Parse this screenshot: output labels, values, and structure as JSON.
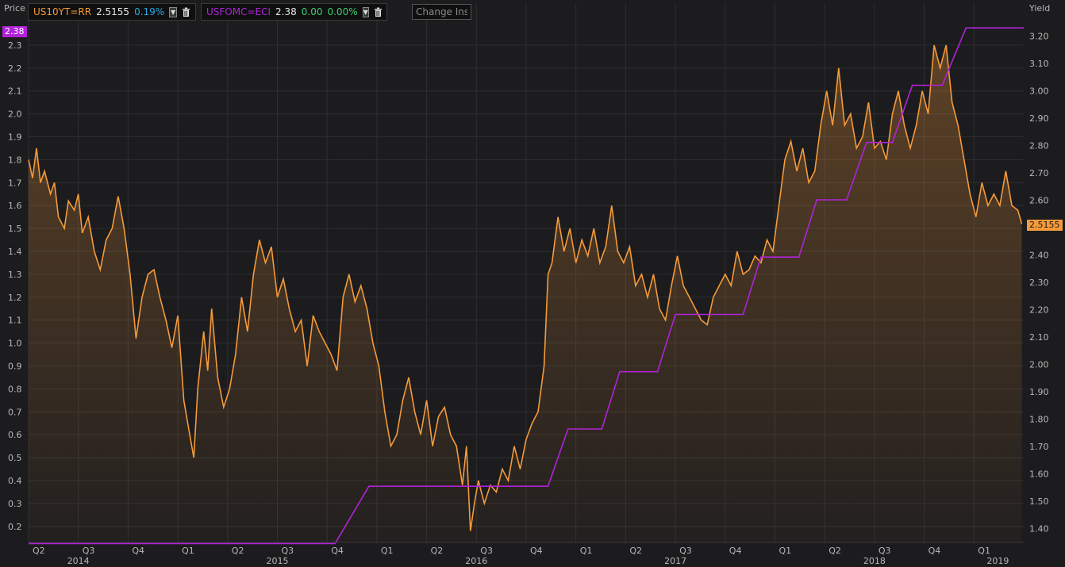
{
  "colors": {
    "background": "#1c1c1e",
    "grid": "#2e2e30",
    "us10yt": "#f59a3a",
    "usfomc": "#b023d8",
    "positive_green": "#3cd070",
    "pct_blue": "#29a8e0",
    "axis_text": "#b8b8b8"
  },
  "legend": [
    {
      "symbol": "US10YT=RR",
      "price": "2.5155",
      "change": "",
      "pct": "0.19%"
    },
    {
      "symbol": "USFOMC=ECI",
      "price": "2.38",
      "change": "0.00",
      "pct": "0.00%"
    }
  ],
  "icons": {
    "dropdown": "chevron-down-icon",
    "delete": "trash-icon"
  },
  "change_input": {
    "placeholder": "Change Inst"
  },
  "axes": {
    "left_title": "Price",
    "right_title": "Yield",
    "left_marker": "2.38",
    "right_marker": "2.5155"
  },
  "chart_data": {
    "type": "line",
    "left_axis": {
      "label": "Price",
      "range": [
        0.13,
        2.4
      ],
      "ticks": [
        "0.2",
        "0.3",
        "0.4",
        "0.5",
        "0.6",
        "0.7",
        "0.8",
        "0.9",
        "1.0",
        "1.1",
        "1.2",
        "1.3",
        "1.4",
        "1.5",
        "1.6",
        "1.7",
        "1.8",
        "1.9",
        "2.0",
        "2.1",
        "2.2",
        "2.3"
      ]
    },
    "right_axis": {
      "label": "Yield",
      "range": [
        1.35,
        3.25
      ],
      "ticks": [
        "1.40",
        "1.50",
        "1.60",
        "1.70",
        "1.80",
        "1.90",
        "2.00",
        "2.10",
        "2.20",
        "2.30",
        "2.40",
        "2.50",
        "2.60",
        "2.70",
        "2.80",
        "2.90",
        "3.00",
        "3.10",
        "3.20"
      ]
    },
    "x_axis": {
      "range": [
        2014.25,
        2019.25
      ],
      "quarters": [
        {
          "t": 2014.25,
          "label": "Q2"
        },
        {
          "t": 2014.5,
          "label": "Q3"
        },
        {
          "t": 2014.75,
          "label": "Q4"
        },
        {
          "t": 2015.0,
          "label": "Q1"
        },
        {
          "t": 2015.25,
          "label": "Q2"
        },
        {
          "t": 2015.5,
          "label": "Q3"
        },
        {
          "t": 2015.75,
          "label": "Q4"
        },
        {
          "t": 2016.0,
          "label": "Q1"
        },
        {
          "t": 2016.25,
          "label": "Q2"
        },
        {
          "t": 2016.5,
          "label": "Q3"
        },
        {
          "t": 2016.75,
          "label": "Q4"
        },
        {
          "t": 2017.0,
          "label": "Q1"
        },
        {
          "t": 2017.25,
          "label": "Q2"
        },
        {
          "t": 2017.5,
          "label": "Q3"
        },
        {
          "t": 2017.75,
          "label": "Q4"
        },
        {
          "t": 2018.0,
          "label": "Q1"
        },
        {
          "t": 2018.25,
          "label": "Q2"
        },
        {
          "t": 2018.5,
          "label": "Q3"
        },
        {
          "t": 2018.75,
          "label": "Q4"
        },
        {
          "t": 2019.0,
          "label": "Q1"
        }
      ],
      "years": [
        {
          "t": 2014.5,
          "label": "2014"
        },
        {
          "t": 2015.5,
          "label": "2015"
        },
        {
          "t": 2016.5,
          "label": "2016"
        },
        {
          "t": 2017.5,
          "label": "2017"
        },
        {
          "t": 2018.5,
          "label": "2018"
        },
        {
          "t": 2019.12,
          "label": "2019"
        }
      ]
    },
    "series": [
      {
        "name": "US10YT=RR",
        "axis": "left",
        "style": "line-with-area",
        "points": [
          [
            2014.25,
            1.8
          ],
          [
            2014.27,
            1.72
          ],
          [
            2014.29,
            1.85
          ],
          [
            2014.31,
            1.7
          ],
          [
            2014.33,
            1.75
          ],
          [
            2014.36,
            1.65
          ],
          [
            2014.38,
            1.7
          ],
          [
            2014.4,
            1.55
          ],
          [
            2014.43,
            1.5
          ],
          [
            2014.45,
            1.62
          ],
          [
            2014.48,
            1.58
          ],
          [
            2014.5,
            1.65
          ],
          [
            2014.52,
            1.48
          ],
          [
            2014.55,
            1.55
          ],
          [
            2014.58,
            1.4
          ],
          [
            2014.61,
            1.32
          ],
          [
            2014.64,
            1.45
          ],
          [
            2014.67,
            1.5
          ],
          [
            2014.7,
            1.64
          ],
          [
            2014.73,
            1.5
          ],
          [
            2014.76,
            1.3
          ],
          [
            2014.79,
            1.02
          ],
          [
            2014.82,
            1.2
          ],
          [
            2014.85,
            1.3
          ],
          [
            2014.88,
            1.32
          ],
          [
            2014.91,
            1.2
          ],
          [
            2014.94,
            1.1
          ],
          [
            2014.97,
            0.98
          ],
          [
            2015.0,
            1.12
          ],
          [
            2015.03,
            0.75
          ],
          [
            2015.06,
            0.6
          ],
          [
            2015.08,
            0.5
          ],
          [
            2015.1,
            0.8
          ],
          [
            2015.13,
            1.05
          ],
          [
            2015.15,
            0.88
          ],
          [
            2015.17,
            1.15
          ],
          [
            2015.2,
            0.85
          ],
          [
            2015.23,
            0.72
          ],
          [
            2015.26,
            0.8
          ],
          [
            2015.29,
            0.95
          ],
          [
            2015.32,
            1.2
          ],
          [
            2015.35,
            1.05
          ],
          [
            2015.38,
            1.3
          ],
          [
            2015.41,
            1.45
          ],
          [
            2015.44,
            1.35
          ],
          [
            2015.47,
            1.42
          ],
          [
            2015.5,
            1.2
          ],
          [
            2015.53,
            1.28
          ],
          [
            2015.56,
            1.15
          ],
          [
            2015.59,
            1.05
          ],
          [
            2015.62,
            1.1
          ],
          [
            2015.65,
            0.9
          ],
          [
            2015.68,
            1.12
          ],
          [
            2015.71,
            1.05
          ],
          [
            2015.74,
            1.0
          ],
          [
            2015.77,
            0.95
          ],
          [
            2015.8,
            0.88
          ],
          [
            2015.83,
            1.2
          ],
          [
            2015.86,
            1.3
          ],
          [
            2015.89,
            1.18
          ],
          [
            2015.92,
            1.25
          ],
          [
            2015.95,
            1.15
          ],
          [
            2015.98,
            1.0
          ],
          [
            2016.01,
            0.9
          ],
          [
            2016.04,
            0.7
          ],
          [
            2016.07,
            0.55
          ],
          [
            2016.1,
            0.6
          ],
          [
            2016.13,
            0.75
          ],
          [
            2016.16,
            0.85
          ],
          [
            2016.19,
            0.7
          ],
          [
            2016.22,
            0.6
          ],
          [
            2016.25,
            0.75
          ],
          [
            2016.28,
            0.55
          ],
          [
            2016.31,
            0.68
          ],
          [
            2016.34,
            0.72
          ],
          [
            2016.37,
            0.6
          ],
          [
            2016.4,
            0.55
          ],
          [
            2016.43,
            0.38
          ],
          [
            2016.45,
            0.55
          ],
          [
            2016.47,
            0.18
          ],
          [
            2016.49,
            0.3
          ],
          [
            2016.51,
            0.4
          ],
          [
            2016.54,
            0.3
          ],
          [
            2016.57,
            0.38
          ],
          [
            2016.6,
            0.35
          ],
          [
            2016.63,
            0.45
          ],
          [
            2016.66,
            0.4
          ],
          [
            2016.69,
            0.55
          ],
          [
            2016.72,
            0.45
          ],
          [
            2016.75,
            0.58
          ],
          [
            2016.78,
            0.65
          ],
          [
            2016.81,
            0.7
          ],
          [
            2016.84,
            0.9
          ],
          [
            2016.86,
            1.3
          ],
          [
            2016.88,
            1.35
          ],
          [
            2016.91,
            1.55
          ],
          [
            2016.94,
            1.4
          ],
          [
            2016.97,
            1.5
          ],
          [
            2017.0,
            1.35
          ],
          [
            2017.03,
            1.45
          ],
          [
            2017.06,
            1.38
          ],
          [
            2017.09,
            1.5
          ],
          [
            2017.12,
            1.35
          ],
          [
            2017.15,
            1.42
          ],
          [
            2017.18,
            1.6
          ],
          [
            2017.21,
            1.4
          ],
          [
            2017.24,
            1.35
          ],
          [
            2017.27,
            1.42
          ],
          [
            2017.3,
            1.25
          ],
          [
            2017.33,
            1.3
          ],
          [
            2017.36,
            1.2
          ],
          [
            2017.39,
            1.3
          ],
          [
            2017.42,
            1.15
          ],
          [
            2017.45,
            1.1
          ],
          [
            2017.48,
            1.25
          ],
          [
            2017.51,
            1.38
          ],
          [
            2017.54,
            1.25
          ],
          [
            2017.57,
            1.2
          ],
          [
            2017.6,
            1.15
          ],
          [
            2017.63,
            1.1
          ],
          [
            2017.66,
            1.08
          ],
          [
            2017.69,
            1.2
          ],
          [
            2017.72,
            1.25
          ],
          [
            2017.75,
            1.3
          ],
          [
            2017.78,
            1.25
          ],
          [
            2017.81,
            1.4
          ],
          [
            2017.84,
            1.3
          ],
          [
            2017.87,
            1.32
          ],
          [
            2017.9,
            1.38
          ],
          [
            2017.93,
            1.35
          ],
          [
            2017.96,
            1.45
          ],
          [
            2017.99,
            1.4
          ],
          [
            2018.02,
            1.6
          ],
          [
            2018.05,
            1.8
          ],
          [
            2018.08,
            1.88
          ],
          [
            2018.11,
            1.75
          ],
          [
            2018.14,
            1.85
          ],
          [
            2018.17,
            1.7
          ],
          [
            2018.2,
            1.75
          ],
          [
            2018.23,
            1.95
          ],
          [
            2018.26,
            2.1
          ],
          [
            2018.29,
            1.95
          ],
          [
            2018.32,
            2.2
          ],
          [
            2018.35,
            1.95
          ],
          [
            2018.38,
            2.0
          ],
          [
            2018.41,
            1.85
          ],
          [
            2018.44,
            1.9
          ],
          [
            2018.47,
            2.05
          ],
          [
            2018.5,
            1.85
          ],
          [
            2018.53,
            1.88
          ],
          [
            2018.56,
            1.8
          ],
          [
            2018.59,
            2.0
          ],
          [
            2018.62,
            2.1
          ],
          [
            2018.65,
            1.95
          ],
          [
            2018.68,
            1.85
          ],
          [
            2018.71,
            1.95
          ],
          [
            2018.74,
            2.1
          ],
          [
            2018.77,
            2.0
          ],
          [
            2018.8,
            2.3
          ],
          [
            2018.83,
            2.2
          ],
          [
            2018.86,
            2.3
          ],
          [
            2018.89,
            2.05
          ],
          [
            2018.92,
            1.95
          ],
          [
            2018.95,
            1.8
          ],
          [
            2018.98,
            1.65
          ],
          [
            2019.01,
            1.55
          ],
          [
            2019.04,
            1.7
          ],
          [
            2019.07,
            1.6
          ],
          [
            2019.1,
            1.65
          ],
          [
            2019.13,
            1.6
          ],
          [
            2019.16,
            1.75
          ],
          [
            2019.19,
            1.6
          ],
          [
            2019.22,
            1.58
          ],
          [
            2019.24,
            1.52
          ]
        ]
      },
      {
        "name": "USFOMC=ECI",
        "axis": "left",
        "style": "step",
        "points": [
          [
            2014.25,
            0.125
          ],
          [
            2015.79,
            0.125
          ],
          [
            2015.96,
            0.375
          ],
          [
            2016.86,
            0.375
          ],
          [
            2016.96,
            0.625
          ],
          [
            2017.13,
            0.625
          ],
          [
            2017.22,
            0.875
          ],
          [
            2017.41,
            0.875
          ],
          [
            2017.5,
            1.125
          ],
          [
            2017.84,
            1.125
          ],
          [
            2017.93,
            1.375
          ],
          [
            2018.12,
            1.375
          ],
          [
            2018.21,
            1.625
          ],
          [
            2018.36,
            1.625
          ],
          [
            2018.46,
            1.875
          ],
          [
            2018.59,
            1.875
          ],
          [
            2018.69,
            2.125
          ],
          [
            2018.84,
            2.125
          ],
          [
            2018.96,
            2.375
          ],
          [
            2019.25,
            2.375
          ]
        ]
      }
    ]
  }
}
